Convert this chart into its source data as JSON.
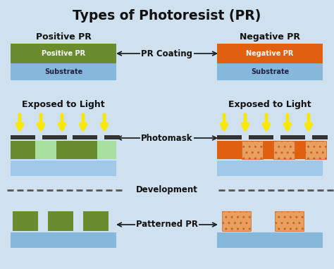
{
  "title": "Types of Photoresist (PR)",
  "bg_color": "#cfe0ef",
  "pos_pr_color": "#6a8c2e",
  "neg_pr_color": "#e06010",
  "substrate_color": "#85b8db",
  "substrate_color2": "#a0c8e8",
  "exposed_pos_color": "#a8e0a0",
  "exposed_neg_color": "#e8a060",
  "photomask_color": "#333333",
  "arrow_color": "#222222",
  "label_color": "#111111",
  "yellow": "#f8e800",
  "yellow_outline": "#c8b800",
  "row1_label_left": "Positive PR",
  "row1_label_right": "Negative PR",
  "row2_label_left": "Exposed to Light",
  "row2_label_right": "Exposed to Light",
  "mid_label1": "PR Coating",
  "mid_label2": "Photomask",
  "mid_label3": "Development",
  "mid_label4": "Patterned PR",
  "pr_label_pos": "Positive PR",
  "pr_label_neg": "Negative PR",
  "substrate_label": "Substrate"
}
